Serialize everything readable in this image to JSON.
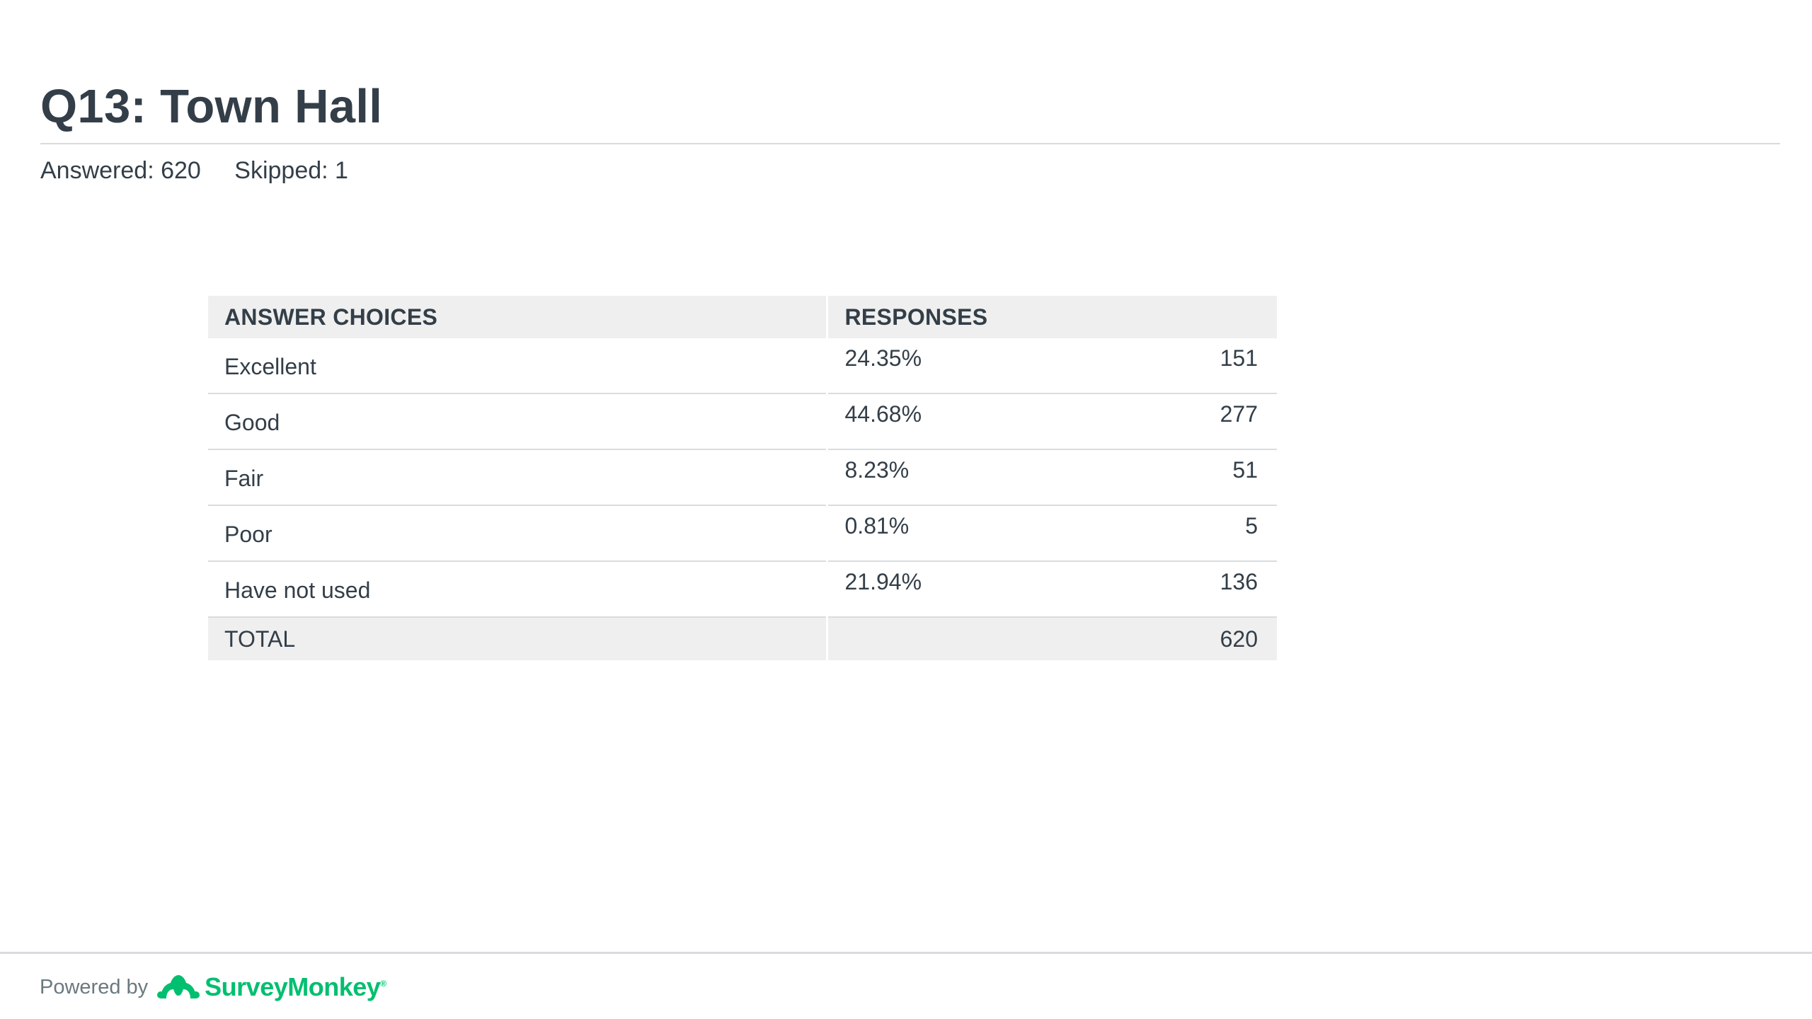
{
  "question": {
    "title": "Q13: Town Hall",
    "answered": "Answered: 620",
    "skipped": "Skipped: 1"
  },
  "table": {
    "headers": {
      "choices": "ANSWER CHOICES",
      "responses": "RESPONSES"
    },
    "rows": [
      {
        "choice": "Excellent",
        "percent": "24.35%",
        "count": "151"
      },
      {
        "choice": "Good",
        "percent": "44.68%",
        "count": "277"
      },
      {
        "choice": "Fair",
        "percent": "8.23%",
        "count": "51"
      },
      {
        "choice": "Poor",
        "percent": "0.81%",
        "count": "5"
      },
      {
        "choice": "Have not used",
        "percent": "21.94%",
        "count": "136"
      }
    ],
    "total": {
      "label": "TOTAL",
      "count": "620"
    }
  },
  "footer": {
    "powered_by": "Powered by",
    "brand": "SurveyMonkey",
    "brand_mark": "®",
    "brand_color": "#00bf6f"
  }
}
